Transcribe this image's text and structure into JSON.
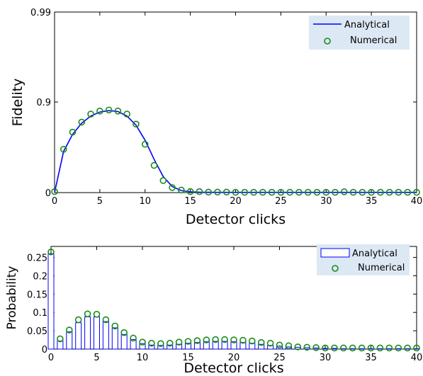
{
  "chart_data": [
    {
      "type": "line",
      "xlabel": "Detector clicks",
      "ylabel": "Fidelity",
      "xlim": [
        0,
        40
      ],
      "ylim": [
        0,
        0.99
      ],
      "xticks": [
        "0",
        "5",
        "10",
        "15",
        "20",
        "25",
        "30",
        "35",
        "40"
      ],
      "yticks": [
        "0",
        "0.9",
        "0.99"
      ],
      "legend_position": "top-right",
      "series": [
        {
          "name": "Analytical",
          "style": "line",
          "color": "#0000ff",
          "x": [
            0,
            1,
            2,
            3,
            4,
            5,
            6,
            7,
            8,
            9,
            10,
            11,
            12,
            13,
            14,
            15,
            16,
            17,
            18,
            19,
            20,
            22,
            25,
            30,
            35,
            40
          ],
          "y": [
            0.0,
            0.41,
            0.58,
            0.69,
            0.76,
            0.8,
            0.814,
            0.805,
            0.76,
            0.67,
            0.52,
            0.33,
            0.16,
            0.06,
            0.02,
            0.008,
            0.004,
            0.003,
            0.002,
            0.002,
            0.002,
            0.002,
            0.002,
            0.002,
            0.002,
            0.002
          ]
        },
        {
          "name": "Numerical",
          "style": "markers",
          "color": "#1a8a1a",
          "x": [
            0,
            1,
            2,
            3,
            4,
            5,
            6,
            7,
            8,
            9,
            10,
            11,
            12,
            13,
            14,
            15,
            16,
            17,
            18,
            19,
            20,
            21,
            22,
            23,
            24,
            25,
            26,
            27,
            28,
            29,
            30,
            31,
            32,
            33,
            34,
            35,
            36,
            37,
            38,
            39,
            40
          ],
          "y": [
            0.01,
            0.43,
            0.6,
            0.7,
            0.78,
            0.81,
            0.82,
            0.81,
            0.78,
            0.68,
            0.48,
            0.27,
            0.12,
            0.05,
            0.025,
            0.01,
            0.01,
            0.005,
            0.005,
            0.005,
            0.003,
            0.003,
            0.003,
            0.003,
            0.003,
            0.003,
            0.003,
            0.003,
            0.003,
            0.003,
            0.003,
            0.003,
            0.008,
            0.003,
            0.003,
            0.003,
            0.003,
            0.003,
            0.003,
            0.003,
            0.003
          ]
        }
      ]
    },
    {
      "type": "bar",
      "xlabel": "Detector clicks",
      "ylabel": "Probability",
      "xlim": [
        0,
        40
      ],
      "ylim": [
        0,
        0.28
      ],
      "xticks": [
        "0",
        "5",
        "10",
        "15",
        "20",
        "25",
        "30",
        "35",
        "40"
      ],
      "yticks": [
        "0",
        "0.05",
        "0.1",
        "0.15",
        "0.2",
        "0.25"
      ],
      "legend_position": "top-right",
      "series": [
        {
          "name": "Analytical",
          "style": "bar",
          "color": "#0000ff",
          "x": [
            0,
            1,
            2,
            3,
            4,
            5,
            6,
            7,
            8,
            9,
            10,
            11,
            12,
            13,
            14,
            15,
            16,
            17,
            18,
            19,
            20,
            21,
            22,
            23,
            24,
            25,
            26,
            27,
            28,
            29,
            30,
            31,
            32,
            33,
            34,
            35,
            36,
            37,
            38,
            39,
            40
          ],
          "y": [
            0.26,
            0.022,
            0.047,
            0.072,
            0.088,
            0.088,
            0.075,
            0.058,
            0.04,
            0.026,
            0.015,
            0.011,
            0.01,
            0.011,
            0.013,
            0.016,
            0.018,
            0.02,
            0.021,
            0.021,
            0.02,
            0.018,
            0.016,
            0.013,
            0.01,
            0.008,
            0.006,
            0.005,
            0.004,
            0.003,
            0.002,
            0.002,
            0.001,
            0.001,
            0.001,
            0.001,
            0.001,
            0.001,
            0.001,
            0.001,
            0.001
          ]
        },
        {
          "name": "Numerical",
          "style": "markers",
          "color": "#1a8a1a",
          "x": [
            0,
            1,
            2,
            3,
            4,
            5,
            6,
            7,
            8,
            9,
            10,
            11,
            12,
            13,
            14,
            15,
            16,
            17,
            18,
            19,
            20,
            21,
            22,
            23,
            24,
            25,
            26,
            27,
            28,
            29,
            30,
            31,
            32,
            33,
            34,
            35,
            36,
            37,
            38,
            39,
            40
          ],
          "y": [
            0.265,
            0.028,
            0.052,
            0.08,
            0.096,
            0.095,
            0.08,
            0.063,
            0.045,
            0.03,
            0.019,
            0.016,
            0.015,
            0.016,
            0.019,
            0.021,
            0.023,
            0.025,
            0.026,
            0.026,
            0.025,
            0.024,
            0.022,
            0.018,
            0.016,
            0.011,
            0.009,
            0.006,
            0.005,
            0.004,
            0.003,
            0.003,
            0.003,
            0.003,
            0.003,
            0.003,
            0.003,
            0.003,
            0.003,
            0.003,
            0.003
          ]
        }
      ]
    }
  ]
}
